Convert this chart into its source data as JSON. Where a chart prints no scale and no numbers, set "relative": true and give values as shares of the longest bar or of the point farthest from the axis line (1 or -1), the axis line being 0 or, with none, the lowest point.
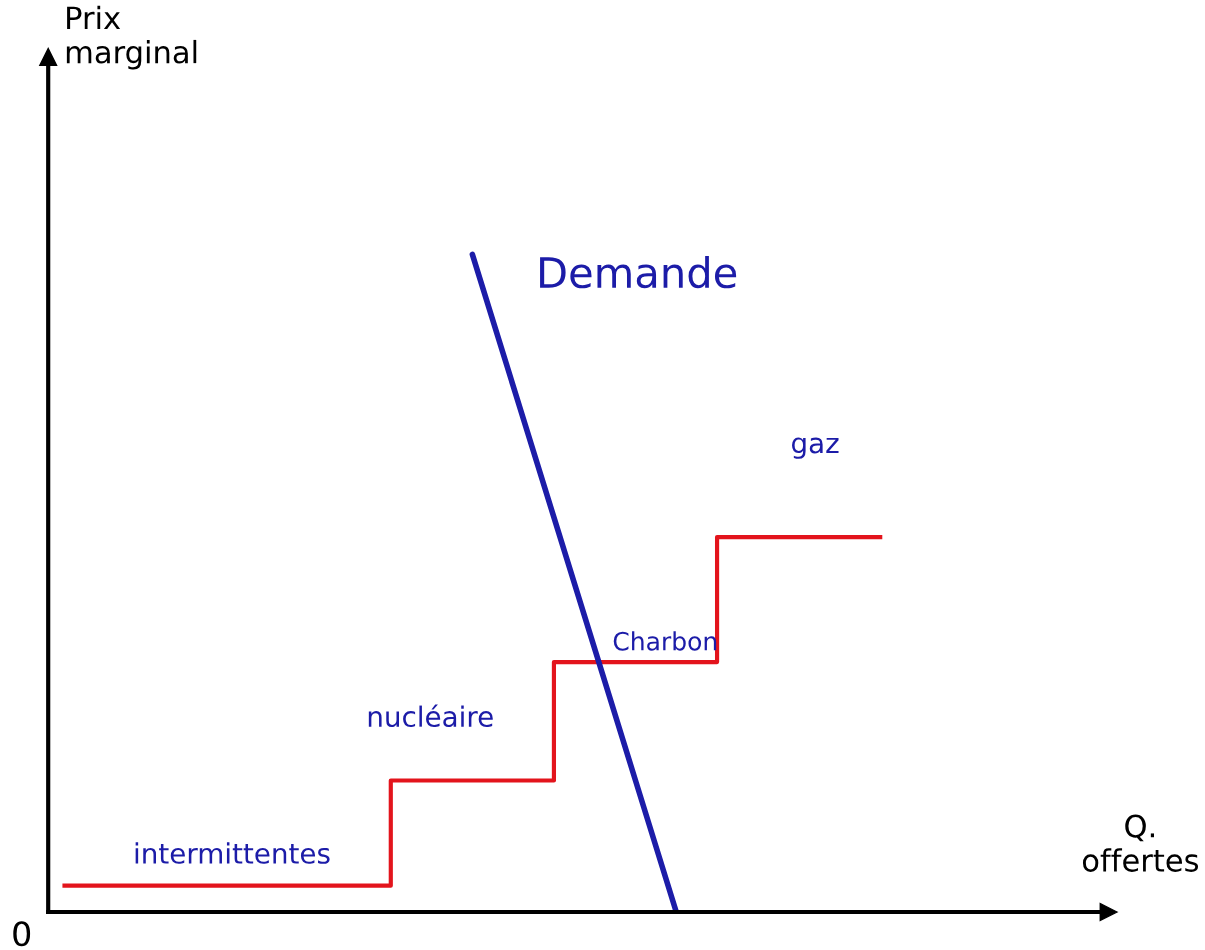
{
  "chart_data": {
    "type": "step",
    "relative": true,
    "categories": [
      null,
      null,
      null,
      null,
      null,
      null,
      null,
      null,
      null,
      null,
      null,
      null,
      null,
      null,
      null,
      null,
      null,
      null,
      null,
      null,
      null
    ],
    "series": [
      {
        "color": "#e3141c",
        "values": [
          0.04,
          0.04,
          0.04,
          0.04,
          0.04,
          0.04,
          0.04,
          0.04,
          0.2,
          0.2,
          0.2,
          0.2,
          0.38,
          0.38,
          0.38,
          0.38,
          0.57,
          0.57,
          0.57,
          0.57,
          0.57
        ]
      },
      {
        "type": "line",
        "color": "#1c1ca8",
        "values": [
          null,
          null,
          null,
          null,
          null,
          null,
          null,
          null,
          null,
          null,
          1,
          0.8,
          0.6,
          0.4,
          0.2,
          0,
          null,
          null,
          null,
          null,
          null
        ]
      }
    ],
    "annotations": [
      "Demande",
      "intermittentes",
      "nucléaire",
      "Charbon",
      "gaz",
      "0",
      "Prix\nmarginal",
      "Q.\noffertes"
    ],
    "legend": false
  }
}
